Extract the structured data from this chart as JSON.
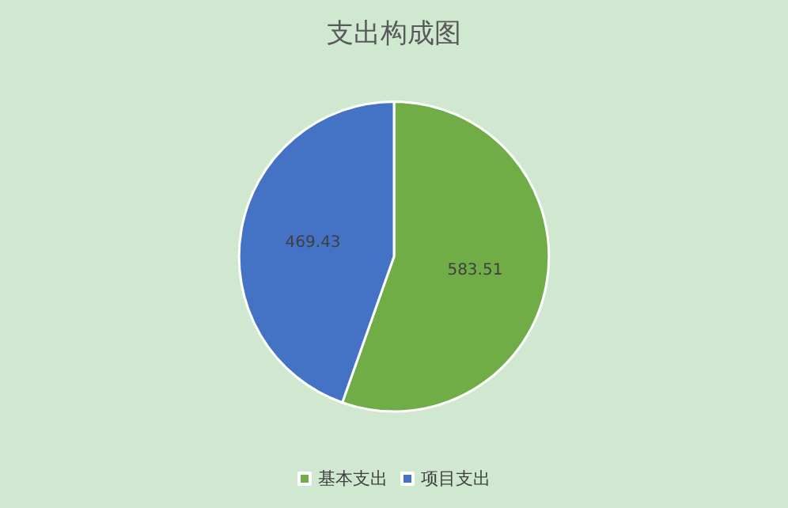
{
  "chart_data": {
    "type": "pie",
    "title": "支出构成图",
    "categories": [
      "基本支出",
      "项目支出"
    ],
    "values": [
      583.51,
      469.43
    ],
    "colors": [
      "#70ad47",
      "#4472c4"
    ],
    "data_labels": true,
    "legend": "bottom"
  }
}
